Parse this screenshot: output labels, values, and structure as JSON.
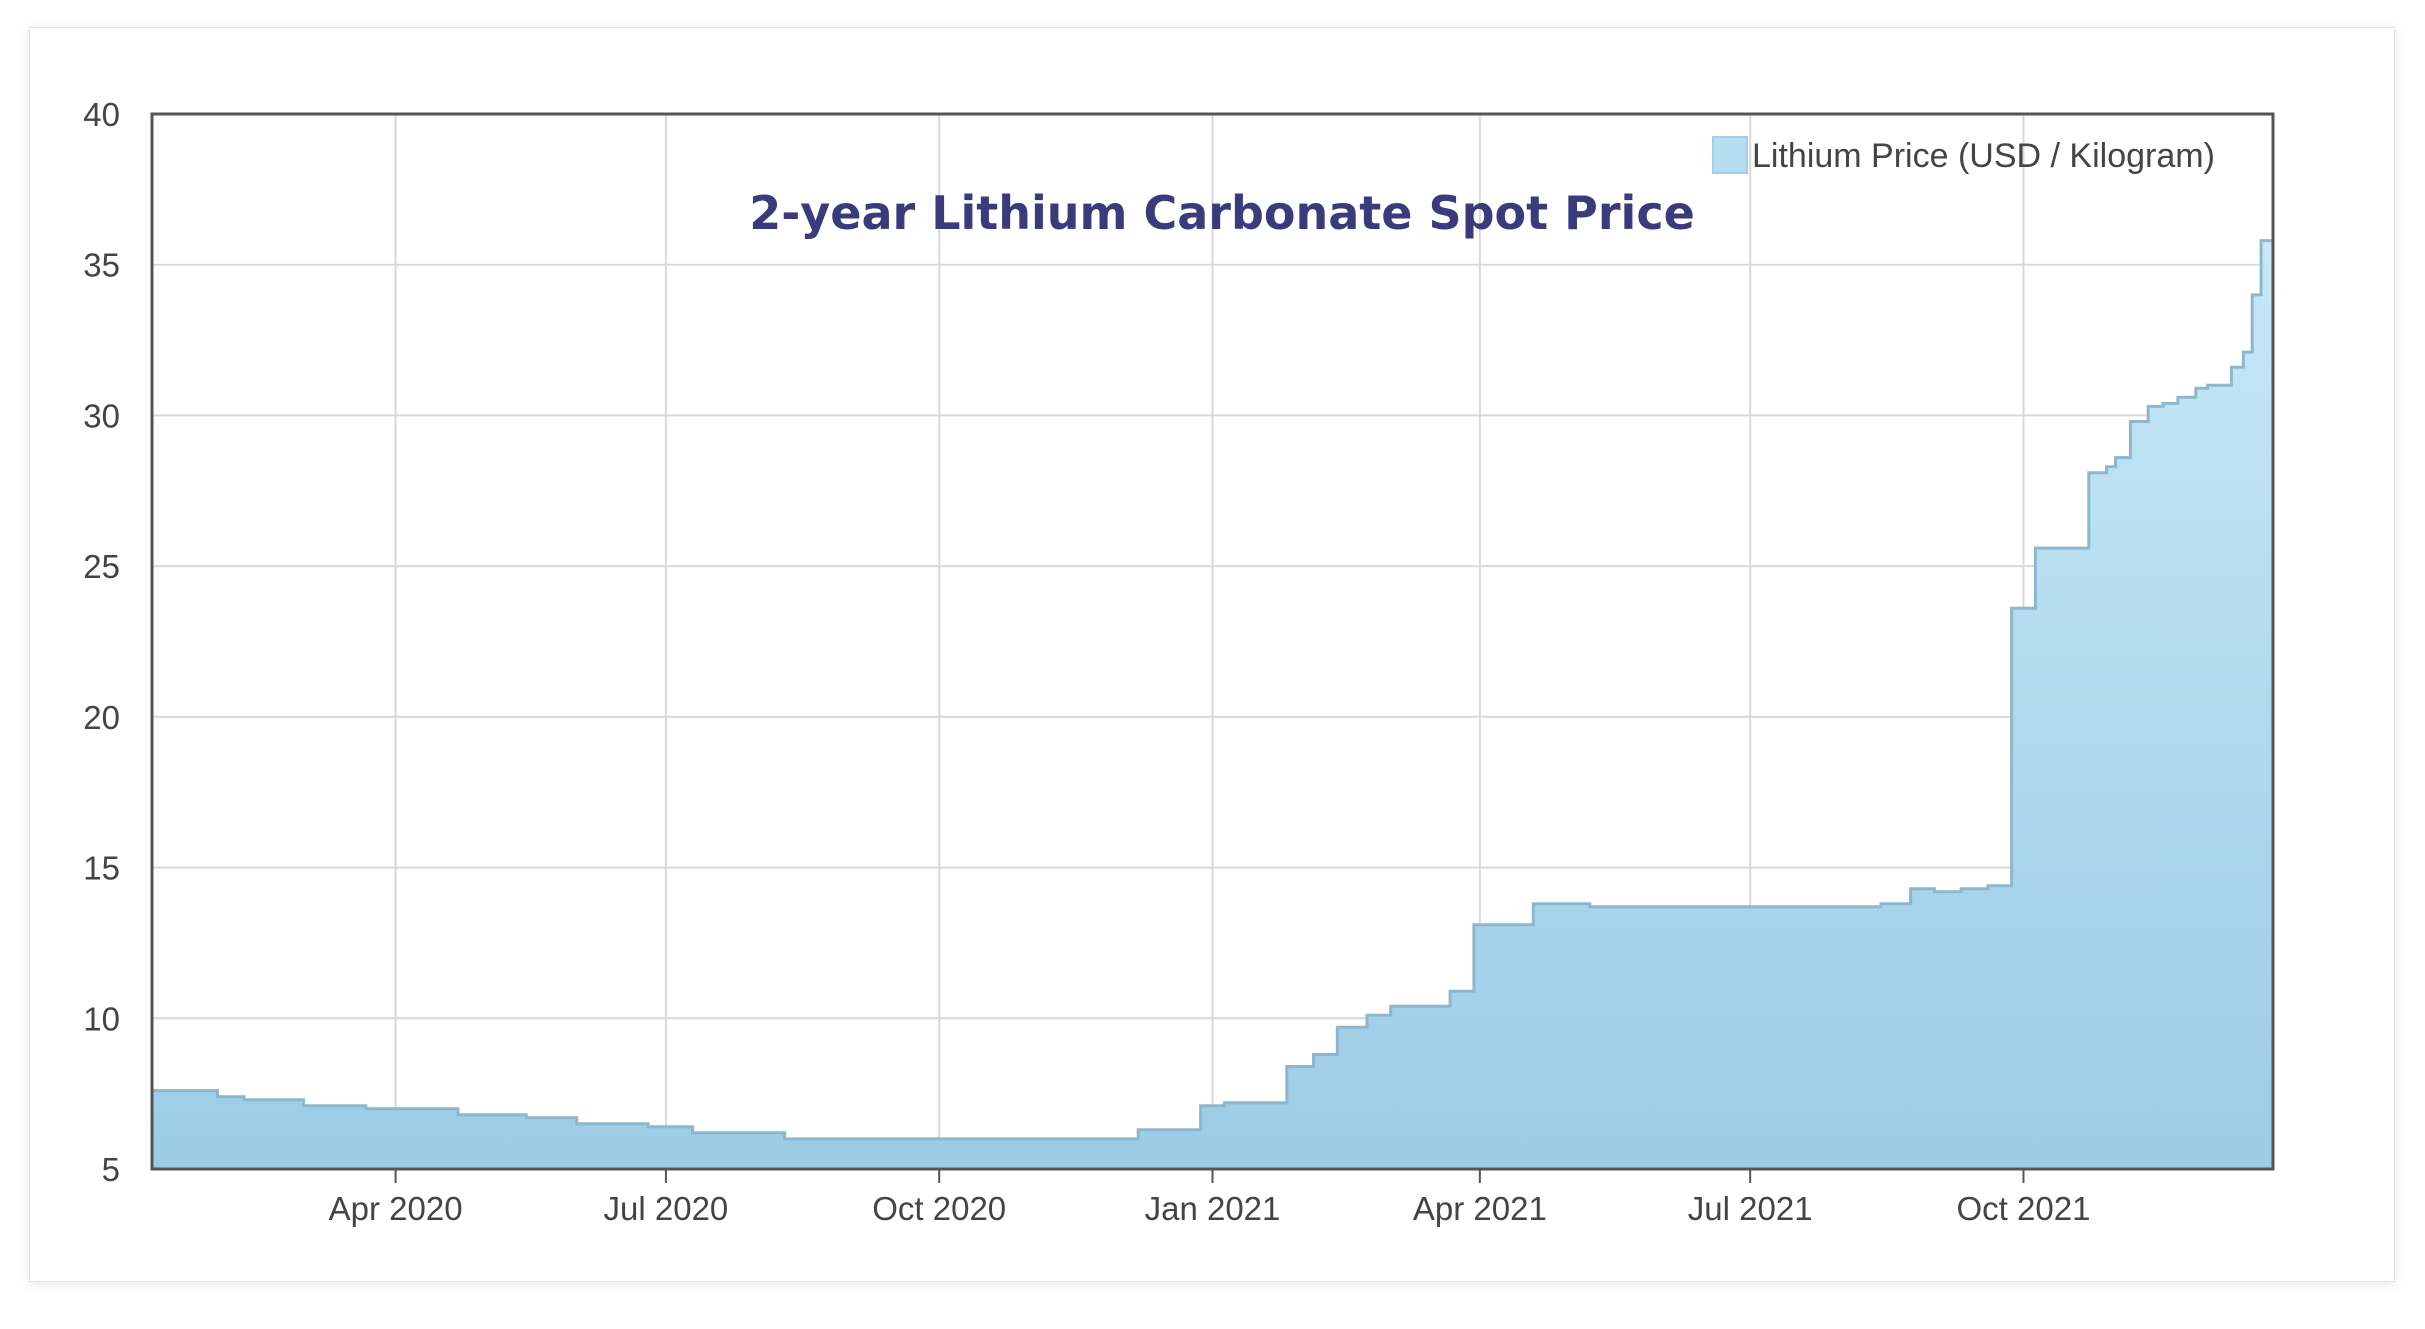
{
  "chart_data": {
    "type": "area",
    "title": "2-year Lithium Carbonate Spot Price",
    "legend": {
      "label": "Lithium Price (USD / Kilogram)",
      "placement": "top-right"
    },
    "xlabel": "",
    "ylabel": "",
    "grid": true,
    "interpolation": "step",
    "x_range": [
      "2020-01-10",
      "2021-12-24"
    ],
    "ylim": [
      5,
      40
    ],
    "y_ticks": [
      5,
      10,
      15,
      20,
      25,
      30,
      35,
      40
    ],
    "x_ticks": [
      {
        "date": "2020-04-01",
        "label": "Apr 2020"
      },
      {
        "date": "2020-07-01",
        "label": "Jul 2020"
      },
      {
        "date": "2020-10-01",
        "label": "Oct 2020"
      },
      {
        "date": "2021-01-01",
        "label": "Jan 2021"
      },
      {
        "date": "2021-04-01",
        "label": "Apr 2021"
      },
      {
        "date": "2021-07-01",
        "label": "Jul 2021"
      },
      {
        "date": "2021-10-01",
        "label": "Oct 2021"
      }
    ],
    "colors": {
      "fill_top": "#c6e8f8",
      "fill_bottom": "#9ccce6",
      "line": "#8eb7cd",
      "grid": "#d9d9d9",
      "axis": "#555555"
    },
    "series": [
      {
        "name": "Lithium Price (USD / Kilogram)",
        "points": [
          [
            "2020-01-10",
            7.6
          ],
          [
            "2020-02-01",
            7.4
          ],
          [
            "2020-02-10",
            7.3
          ],
          [
            "2020-03-01",
            7.1
          ],
          [
            "2020-03-22",
            7.0
          ],
          [
            "2020-04-22",
            6.8
          ],
          [
            "2020-05-15",
            6.7
          ],
          [
            "2020-06-01",
            6.5
          ],
          [
            "2020-06-25",
            6.4
          ],
          [
            "2020-07-10",
            6.2
          ],
          [
            "2020-08-10",
            6.0
          ],
          [
            "2020-12-07",
            6.3
          ],
          [
            "2020-12-28",
            7.1
          ],
          [
            "2021-01-05",
            7.2
          ],
          [
            "2021-01-26",
            8.4
          ],
          [
            "2021-02-04",
            8.8
          ],
          [
            "2021-02-12",
            9.7
          ],
          [
            "2021-02-22",
            10.1
          ],
          [
            "2021-03-02",
            10.4
          ],
          [
            "2021-03-22",
            10.9
          ],
          [
            "2021-03-30",
            13.1
          ],
          [
            "2021-04-19",
            13.8
          ],
          [
            "2021-05-08",
            13.7
          ],
          [
            "2021-08-14",
            13.8
          ],
          [
            "2021-08-24",
            14.3
          ],
          [
            "2021-09-01",
            14.2
          ],
          [
            "2021-09-10",
            14.3
          ],
          [
            "2021-09-19",
            14.4
          ],
          [
            "2021-09-27",
            23.6
          ],
          [
            "2021-10-05",
            25.6
          ],
          [
            "2021-10-23",
            28.1
          ],
          [
            "2021-10-29",
            28.3
          ],
          [
            "2021-11-01",
            28.6
          ],
          [
            "2021-11-06",
            29.8
          ],
          [
            "2021-11-12",
            30.3
          ],
          [
            "2021-11-17",
            30.4
          ],
          [
            "2021-11-22",
            30.6
          ],
          [
            "2021-11-28",
            30.9
          ],
          [
            "2021-12-02",
            31.0
          ],
          [
            "2021-12-10",
            31.6
          ],
          [
            "2021-12-14",
            32.1
          ],
          [
            "2021-12-17",
            34.0
          ],
          [
            "2021-12-20",
            35.8
          ],
          [
            "2021-12-24",
            35.8
          ]
        ]
      }
    ]
  }
}
